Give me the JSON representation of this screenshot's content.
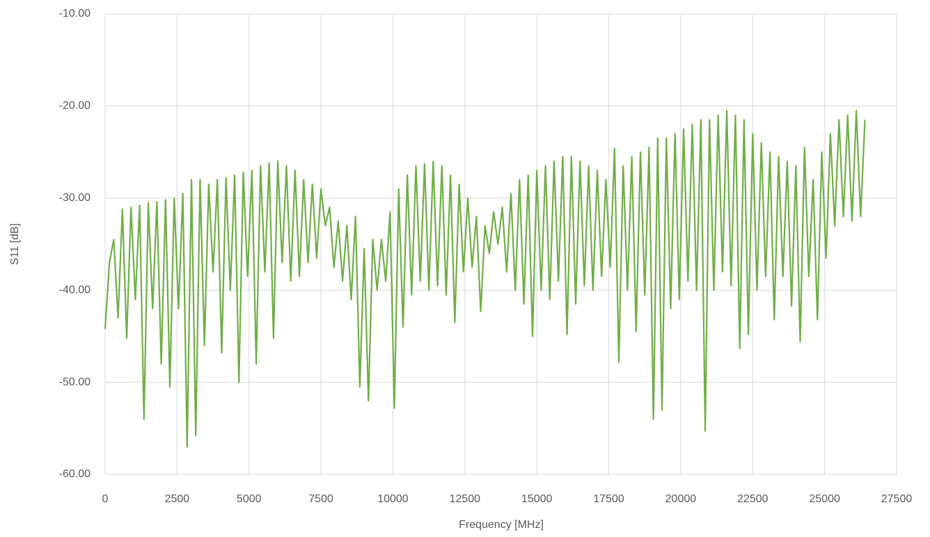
{
  "chart_data": {
    "type": "line",
    "x_label": "Frequency [MHz]",
    "y_label": "S11 [dB]",
    "xlim": [
      0,
      27500
    ],
    "xticks": [
      0,
      2500,
      5000,
      7500,
      10000,
      12500,
      15000,
      17500,
      20000,
      22500,
      25000,
      27500
    ],
    "ylim": [
      -60,
      -10
    ],
    "yticks": [
      {
        "value": -60,
        "label": "-60.00"
      },
      {
        "value": -50,
        "label": "-50.00"
      },
      {
        "value": -40,
        "label": "-40.00"
      },
      {
        "value": -30,
        "label": "-30.00"
      },
      {
        "value": -20,
        "label": "-20.00"
      },
      {
        "value": -10,
        "label": "-10.00"
      }
    ],
    "grid": true,
    "x": [
      0,
      150,
      300,
      450,
      600,
      750,
      900,
      1050,
      1200,
      1350,
      1500,
      1650,
      1800,
      1950,
      2100,
      2250,
      2400,
      2550,
      2700,
      2850,
      3000,
      3150,
      3300,
      3450,
      3600,
      3750,
      3900,
      4050,
      4200,
      4350,
      4500,
      4650,
      4800,
      4950,
      5100,
      5250,
      5400,
      5550,
      5700,
      5850,
      6000,
      6150,
      6300,
      6450,
      6600,
      6750,
      6900,
      7050,
      7200,
      7350,
      7500,
      7650,
      7800,
      7950,
      8100,
      8250,
      8400,
      8550,
      8700,
      8850,
      9000,
      9150,
      9300,
      9450,
      9600,
      9750,
      9900,
      10050,
      10200,
      10350,
      10500,
      10650,
      10800,
      10950,
      11100,
      11250,
      11400,
      11550,
      11700,
      11850,
      12000,
      12150,
      12300,
      12450,
      12600,
      12750,
      12900,
      13050,
      13200,
      13350,
      13500,
      13650,
      13800,
      13950,
      14100,
      14250,
      14400,
      14550,
      14700,
      14850,
      15000,
      15150,
      15300,
      15450,
      15600,
      15750,
      15900,
      16050,
      16200,
      16350,
      16500,
      16650,
      16800,
      16950,
      17100,
      17250,
      17400,
      17550,
      17700,
      17850,
      18000,
      18150,
      18300,
      18450,
      18600,
      18750,
      18900,
      19050,
      19200,
      19350,
      19500,
      19650,
      19800,
      19950,
      20100,
      20250,
      20400,
      20550,
      20700,
      20850,
      21000,
      21150,
      21300,
      21450,
      21600,
      21750,
      21900,
      22050,
      22200,
      22350,
      22500,
      22650,
      22800,
      22950,
      23100,
      23250,
      23400,
      23550,
      23700,
      23850,
      24000,
      24150,
      24300,
      24450,
      24600,
      24750,
      24900,
      25050,
      25200,
      25350,
      25500,
      25650,
      25800,
      25950,
      26100,
      26250,
      26400
    ],
    "series": [
      {
        "color": "#70ad47",
        "values": [
          -44.2,
          -37.0,
          -34.5,
          -43.0,
          -31.2,
          -45.2,
          -31.0,
          -41.0,
          -30.8,
          -54.0,
          -30.5,
          -42.0,
          -30.4,
          -48.0,
          -30.2,
          -50.5,
          -30.0,
          -42.0,
          -29.5,
          -57.0,
          -28.0,
          -55.8,
          -28.0,
          -46.0,
          -28.5,
          -38.0,
          -28.0,
          -46.8,
          -27.8,
          -40.0,
          -27.5,
          -50.0,
          -27.2,
          -38.5,
          -27.0,
          -48.0,
          -26.5,
          -38.0,
          -26.2,
          -45.2,
          -26.0,
          -37.0,
          -26.5,
          -39.0,
          -27.0,
          -38.5,
          -28.0,
          -37.0,
          -28.5,
          -36.5,
          -29.0,
          -33.0,
          -31.0,
          -37.5,
          -32.5,
          -39.0,
          -33.0,
          -41.0,
          -32.0,
          -50.5,
          -35.5,
          -52.0,
          -34.5,
          -40.0,
          -34.5,
          -39.0,
          -31.5,
          -52.8,
          -29.0,
          -44.0,
          -27.5,
          -40.5,
          -26.5,
          -39.0,
          -26.3,
          -40.0,
          -26.0,
          -39.5,
          -26.5,
          -40.5,
          -27.5,
          -43.5,
          -28.5,
          -38.0,
          -30.0,
          -37.5,
          -32.0,
          -42.3,
          -33.0,
          -36.0,
          -31.5,
          -35.0,
          -31.0,
          -38.0,
          -29.5,
          -40.0,
          -28.0,
          -41.5,
          -27.5,
          -45.0,
          -27.0,
          -40.0,
          -26.5,
          -41.0,
          -26.0,
          -39.0,
          -25.5,
          -44.8,
          -25.5,
          -41.5,
          -26.0,
          -39.5,
          -26.5,
          -40.0,
          -27.0,
          -38.5,
          -28.0,
          -37.5,
          -24.6,
          -47.8,
          -26.5,
          -40.0,
          -25.5,
          -44.5,
          -25.0,
          -40.5,
          -24.5,
          -54.0,
          -23.5,
          -53.0,
          -23.5,
          -42.0,
          -23.0,
          -41.0,
          -22.5,
          -39.0,
          -22.0,
          -40.0,
          -21.5,
          -55.3,
          -21.5,
          -40.0,
          -21.0,
          -38.0,
          -20.5,
          -39.5,
          -21.0,
          -46.3,
          -21.5,
          -44.8,
          -23.0,
          -40.0,
          -24.0,
          -38.5,
          -25.0,
          -43.2,
          -25.5,
          -38.5,
          -26.0,
          -41.7,
          -26.5,
          -45.6,
          -24.5,
          -38.5,
          -28.0,
          -43.2,
          -25.0,
          -36.5,
          -23.0,
          -33.0,
          -21.5,
          -32.0,
          -21.0,
          -32.5,
          -20.5,
          -32.0,
          -21.5
        ]
      }
    ]
  }
}
